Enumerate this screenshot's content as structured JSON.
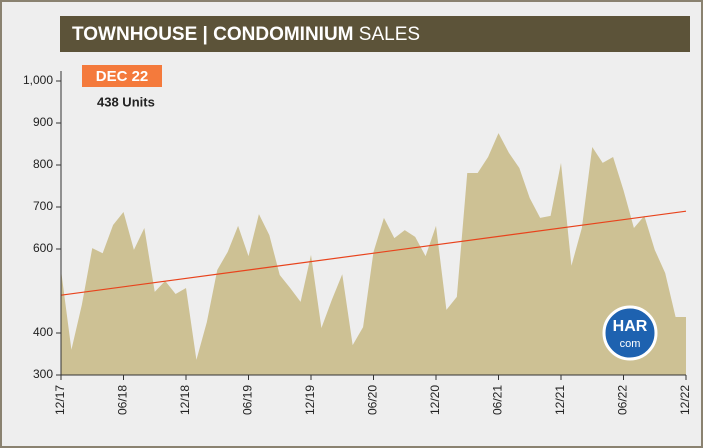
{
  "chart_data": {
    "type": "area",
    "title": {
      "bold": "TOWNHOUSE | CONDOMINIUM",
      "light": "SALES"
    },
    "annotation": {
      "label": "DEC 22",
      "text": "438 Units"
    },
    "logo": {
      "top": "HAR",
      "bottom": "com"
    },
    "categories": [
      "12/17",
      null,
      null,
      null,
      null,
      null,
      "06/18",
      null,
      null,
      null,
      null,
      null,
      "12/18",
      null,
      null,
      null,
      null,
      null,
      "06/19",
      null,
      null,
      null,
      null,
      null,
      "12/19",
      null,
      null,
      null,
      null,
      null,
      "06/20",
      null,
      null,
      null,
      null,
      null,
      "12/20",
      null,
      null,
      null,
      null,
      null,
      "06/21",
      null,
      null,
      null,
      null,
      null,
      "12/21",
      null,
      null,
      null,
      null,
      null,
      "06/22",
      null,
      null,
      null,
      null,
      null,
      "12/22"
    ],
    "series": [
      {
        "color": "#cdc194",
        "values": [
          550,
          360,
          467,
          602,
          590,
          657,
          688,
          598,
          650,
          498,
          524,
          493,
          507,
          336,
          426,
          550,
          593,
          655,
          583,
          683,
          633,
          538,
          507,
          474,
          586,
          412,
          479,
          540,
          371,
          414,
          593,
          674,
          626,
          645,
          629,
          583,
          655,
          455,
          486,
          781,
          781,
          819,
          876,
          829,
          793,
          721,
          674,
          679,
          805,
          560,
          650,
          843,
          805,
          819,
          740,
          650,
          679,
          598,
          543,
          438,
          438
        ]
      }
    ],
    "trendline": {
      "color": "#e8431c",
      "start": 490,
      "end": 690
    },
    "ylim": [
      300,
      1000
    ],
    "yticks": [
      300,
      400,
      600,
      700,
      800,
      900,
      {
        "value": 1000,
        "label": "1,000"
      }
    ]
  }
}
